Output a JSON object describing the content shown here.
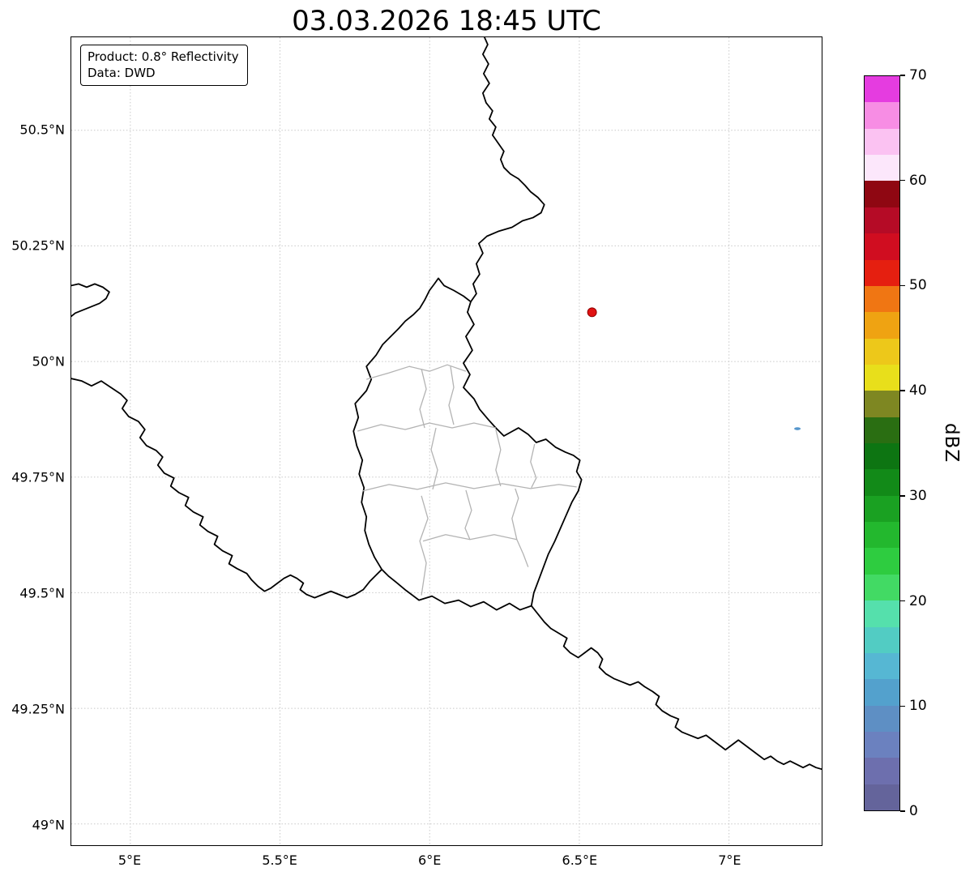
{
  "title": "03.03.2026 18:45 UTC",
  "info_box": {
    "line1": "Product: 0.8° Reflectivity",
    "line2": "Data: DWD"
  },
  "map": {
    "x_tick_labels": [
      "5°E",
      "5.5°E",
      "6°E",
      "6.5°E",
      "7°E"
    ],
    "y_tick_labels": [
      "50.5°N",
      "50.25°N",
      "50°N",
      "49.75°N",
      "49.5°N",
      "49.25°N",
      "49°N"
    ],
    "border_colors": {
      "country": "#000000",
      "district": "#b3b3b3",
      "grid": "#c8c8c8"
    },
    "markers": [
      {
        "name": "radar-site-marker",
        "shape": "circle",
        "color": "#e01212",
        "edge": "#8f0000"
      },
      {
        "name": "small-echo-pixel",
        "shape": "dot",
        "color": "#5596cc"
      }
    ]
  },
  "colorbar": {
    "label": "dBZ",
    "min": 0,
    "max": 70,
    "tick_values": [
      0,
      10,
      20,
      30,
      40,
      50,
      60,
      70
    ],
    "segment_step": 2.5,
    "segment_colors_bottom_to_top": [
      "#64649b",
      "#6d6fae",
      "#6b81bf",
      "#5e8fc4",
      "#53a1cd",
      "#56b7d3",
      "#52ccc3",
      "#55e0ac",
      "#42da64",
      "#2ecc40",
      "#23b82e",
      "#1aa122",
      "#128a18",
      "#0d7512",
      "#2a6e12",
      "#7e8722",
      "#e8df1b",
      "#edc81a",
      "#efa312",
      "#f07613",
      "#e51f10",
      "#d00d20",
      "#b50b26",
      "#8f0712",
      "#fce7fb",
      "#fbc2f2",
      "#f78de4",
      "#e53ce0"
    ]
  }
}
